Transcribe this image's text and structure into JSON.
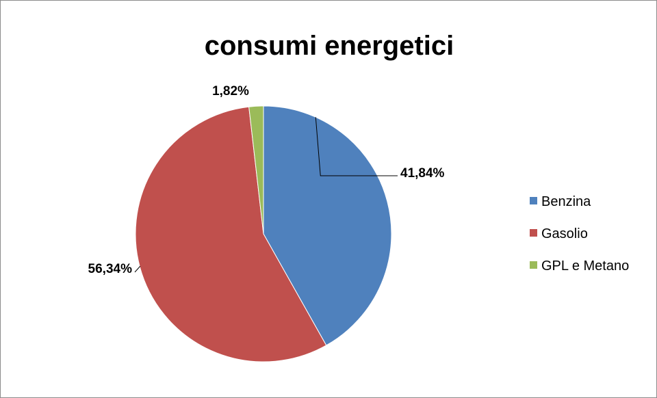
{
  "chart_data": {
    "type": "pie",
    "title": "consumi energetici",
    "categories": [
      "Benzina",
      "Gasolio",
      "GPL e Metano"
    ],
    "values": [
      41.84,
      56.34,
      1.82
    ],
    "data_labels": [
      "41,84%",
      "56,34%",
      "1,82%"
    ],
    "colors": [
      "#4f81bd",
      "#c0504d",
      "#9bbb59"
    ],
    "legend_position": "right",
    "start_angle": "12 o'clock",
    "direction": "clockwise"
  }
}
